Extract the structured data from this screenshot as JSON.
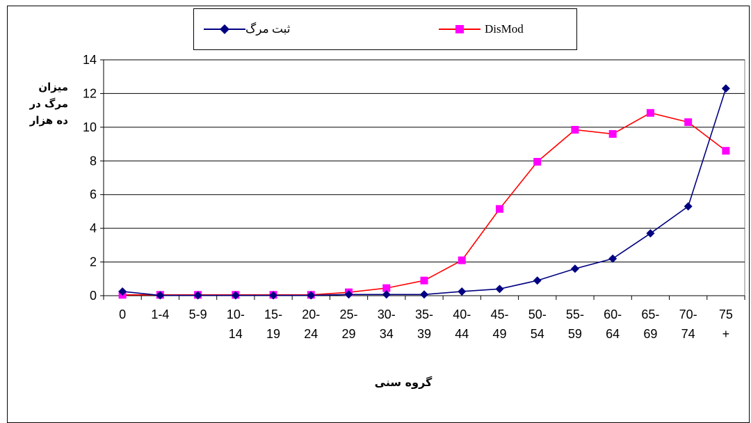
{
  "chart_data": {
    "type": "line",
    "categories": [
      [
        "0"
      ],
      [
        "1-4"
      ],
      [
        "5-9"
      ],
      [
        "10-",
        "14"
      ],
      [
        "15-",
        "19"
      ],
      [
        "20-",
        "24"
      ],
      [
        "25-",
        "29"
      ],
      [
        "30-",
        "34"
      ],
      [
        "35-",
        "39"
      ],
      [
        "40-",
        "44"
      ],
      [
        "45-",
        "49"
      ],
      [
        "50-",
        "54"
      ],
      [
        "55-",
        "59"
      ],
      [
        "60-",
        "64"
      ],
      [
        "65-",
        "69"
      ],
      [
        "70-",
        "74"
      ],
      [
        "75",
        "+"
      ]
    ],
    "series": [
      {
        "name": "DisMod",
        "color": "#ff0000",
        "marker": "square",
        "marker_color": "#ff00ff",
        "values": [
          0.05,
          0.05,
          0.05,
          0.05,
          0.05,
          0.05,
          0.2,
          0.45,
          0.9,
          2.1,
          5.15,
          7.95,
          9.85,
          9.6,
          10.85,
          10.3,
          8.6
        ]
      },
      {
        "name": "ثبت مرگ",
        "color": "#000080",
        "marker": "diamond",
        "marker_color": "#000080",
        "values": [
          0.25,
          0.02,
          0.02,
          0.02,
          0.02,
          0.02,
          0.07,
          0.07,
          0.07,
          0.25,
          0.4,
          0.9,
          1.6,
          2.2,
          3.7,
          5.3,
          12.3
        ]
      }
    ],
    "yticks": [
      "0",
      "2",
      "4",
      "6",
      "8",
      "10",
      "12",
      "14"
    ],
    "ylim": [
      0,
      14
    ],
    "ylabel": [
      "میزان",
      "مرگ در",
      "ده هزار"
    ],
    "xlabel": "گروه سنی",
    "grid": "horizontal",
    "legend_position": "top"
  }
}
